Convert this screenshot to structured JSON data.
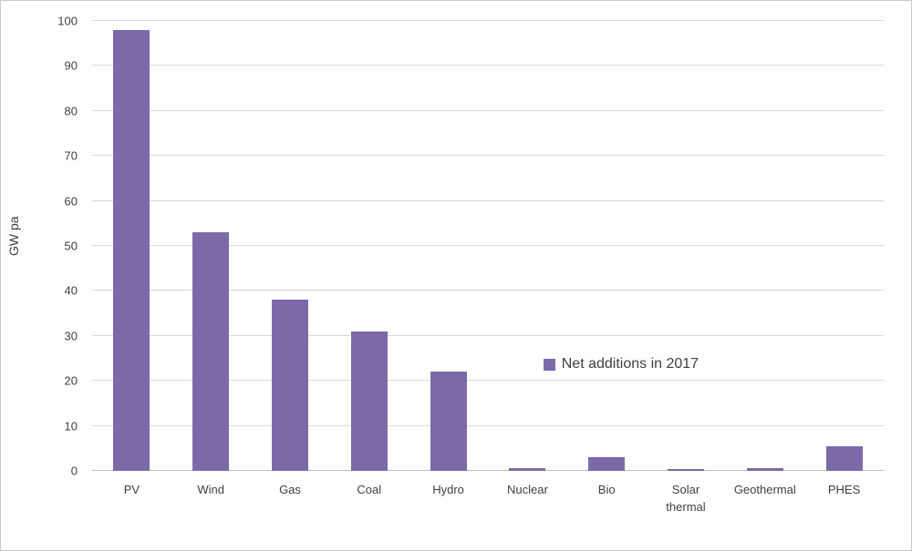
{
  "chart_data": {
    "type": "bar",
    "title": "",
    "xlabel": "",
    "ylabel": "GW pa",
    "ylim": [
      0,
      100
    ],
    "ytick_step": 10,
    "grid": true,
    "bar_color": "#7c6aa8",
    "legend": {
      "label": "Net additions in 2017",
      "position": "inside-right"
    },
    "categories": [
      "PV",
      "Wind",
      "Gas",
      "Coal",
      "Hydro",
      "Nuclear",
      "Bio",
      "Solar thermal",
      "Geothermal",
      "PHES"
    ],
    "values": [
      98,
      53,
      38,
      31,
      22,
      0.7,
      3,
      0.4,
      0.7,
      5.5
    ]
  }
}
